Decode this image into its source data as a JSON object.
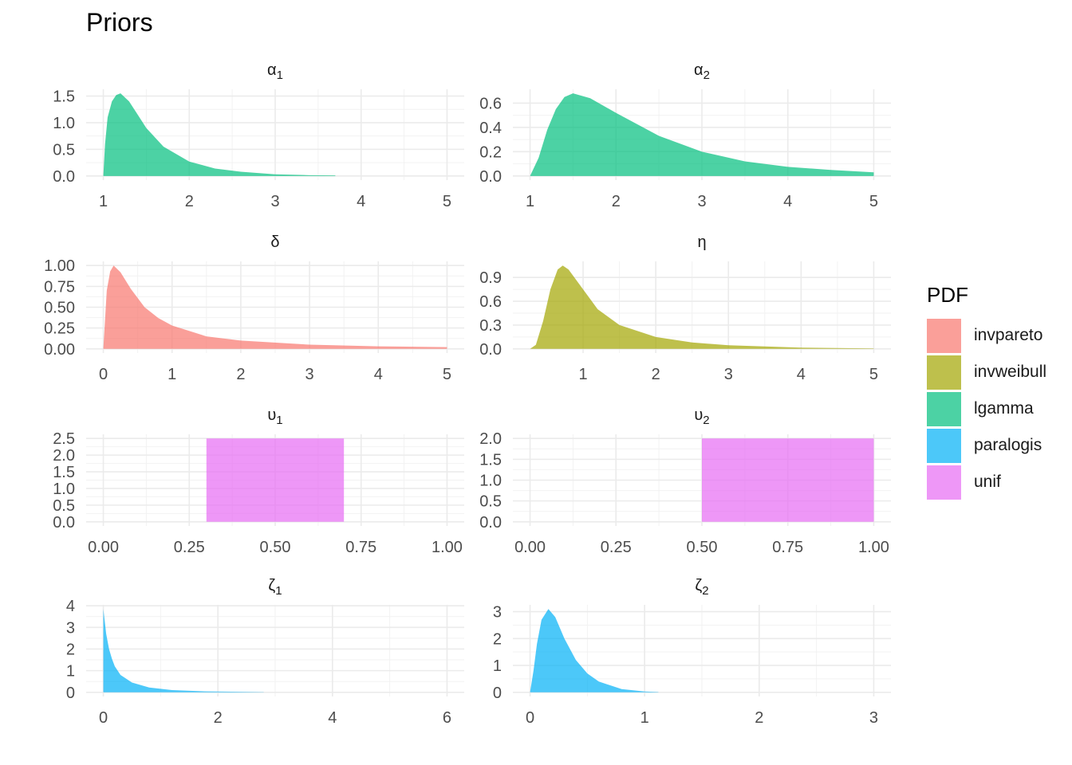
{
  "chart_data": {
    "type": "area",
    "title": "Priors",
    "legend": {
      "title": "PDF",
      "position": "right",
      "entries": [
        {
          "name": "invpareto",
          "color": "#F8766D"
        },
        {
          "name": "invweibull",
          "color": "#A3A500"
        },
        {
          "name": "lgamma",
          "color": "#00BF7D"
        },
        {
          "name": "paralogis",
          "color": "#00B0F6"
        },
        {
          "name": "unif",
          "color": "#E76BF3"
        }
      ]
    },
    "panels": [
      {
        "symbol": "α",
        "sub": "1",
        "pdf": "lgamma",
        "xlim": [
          1,
          5
        ],
        "ylim": [
          0,
          1.55
        ],
        "xticks": [
          1,
          2,
          3,
          4,
          5
        ],
        "xtick_labels": [
          "1",
          "2",
          "3",
          "4",
          "5"
        ],
        "yticks": [
          0,
          0.5,
          1,
          1.5
        ],
        "ytick_labels": [
          "0.0",
          "0.5",
          "1.0",
          "1.5"
        ],
        "x": [
          1,
          1.02,
          1.05,
          1.1,
          1.15,
          1.2,
          1.3,
          1.4,
          1.5,
          1.7,
          2,
          2.3,
          2.6,
          3,
          3.4,
          3.7
        ],
        "y": [
          0,
          0.6,
          1.1,
          1.4,
          1.52,
          1.55,
          1.4,
          1.15,
          0.9,
          0.55,
          0.27,
          0.14,
          0.08,
          0.03,
          0.015,
          0.01
        ]
      },
      {
        "symbol": "α",
        "sub": "2",
        "pdf": "lgamma",
        "xlim": [
          1,
          5
        ],
        "ylim": [
          0,
          0.68
        ],
        "xticks": [
          1,
          2,
          3,
          4,
          5
        ],
        "xtick_labels": [
          "1",
          "2",
          "3",
          "4",
          "5"
        ],
        "yticks": [
          0,
          0.2,
          0.4,
          0.6
        ],
        "ytick_labels": [
          "0.0",
          "0.2",
          "0.4",
          "0.6"
        ],
        "x": [
          1,
          1.1,
          1.2,
          1.3,
          1.4,
          1.5,
          1.7,
          2,
          2.5,
          3,
          3.5,
          4,
          4.5,
          5
        ],
        "y": [
          0,
          0.15,
          0.38,
          0.55,
          0.65,
          0.68,
          0.64,
          0.52,
          0.33,
          0.2,
          0.12,
          0.075,
          0.05,
          0.03
        ]
      },
      {
        "symbol": "δ",
        "sub": "",
        "pdf": "invpareto",
        "xlim": [
          0,
          5
        ],
        "ylim": [
          0,
          1.0
        ],
        "xticks": [
          0,
          1,
          2,
          3,
          4,
          5
        ],
        "xtick_labels": [
          "0",
          "1",
          "2",
          "3",
          "4",
          "5"
        ],
        "yticks": [
          0,
          0.25,
          0.5,
          0.75,
          1
        ],
        "ytick_labels": [
          "0.00",
          "0.25",
          "0.50",
          "0.75",
          "1.00"
        ],
        "x": [
          0,
          0.05,
          0.1,
          0.15,
          0.25,
          0.4,
          0.6,
          0.8,
          1,
          1.5,
          2,
          3,
          4,
          5
        ],
        "y": [
          0,
          0.7,
          0.93,
          1.0,
          0.92,
          0.72,
          0.5,
          0.37,
          0.28,
          0.15,
          0.1,
          0.05,
          0.03,
          0.02
        ]
      },
      {
        "symbol": "η",
        "sub": "",
        "pdf": "invweibull",
        "xlim": [
          0.27,
          5
        ],
        "ylim": [
          0,
          1.05
        ],
        "xticks": [
          1,
          2,
          3,
          4,
          5
        ],
        "xtick_labels": [
          "1",
          "2",
          "3",
          "4",
          "5"
        ],
        "yticks": [
          0,
          0.3,
          0.6,
          0.9
        ],
        "ytick_labels": [
          "0.0",
          "0.3",
          "0.6",
          "0.9"
        ],
        "x": [
          0.27,
          0.35,
          0.45,
          0.55,
          0.65,
          0.72,
          0.8,
          1,
          1.2,
          1.5,
          2,
          2.5,
          3,
          4,
          5
        ],
        "y": [
          0,
          0.05,
          0.35,
          0.75,
          1.0,
          1.05,
          1.0,
          0.75,
          0.5,
          0.3,
          0.15,
          0.08,
          0.045,
          0.015,
          0.005
        ]
      },
      {
        "symbol": "υ",
        "sub": "1",
        "pdf": "unif",
        "xlim": [
          0,
          1
        ],
        "ylim": [
          0,
          2.5
        ],
        "xticks": [
          0,
          0.25,
          0.5,
          0.75,
          1
        ],
        "xtick_labels": [
          "0.00",
          "0.25",
          "0.50",
          "0.75",
          "1.00"
        ],
        "yticks": [
          0,
          0.5,
          1,
          1.5,
          2,
          2.5
        ],
        "ytick_labels": [
          "0.0",
          "0.5",
          "1.0",
          "1.5",
          "2.0",
          "2.5"
        ],
        "x": [
          0.3,
          0.3,
          0.7,
          0.7
        ],
        "y": [
          0,
          2.5,
          2.5,
          0
        ]
      },
      {
        "symbol": "υ",
        "sub": "2",
        "pdf": "unif",
        "xlim": [
          0,
          1
        ],
        "ylim": [
          0,
          2.0
        ],
        "xticks": [
          0,
          0.25,
          0.5,
          0.75,
          1
        ],
        "xtick_labels": [
          "0.00",
          "0.25",
          "0.50",
          "0.75",
          "1.00"
        ],
        "yticks": [
          0,
          0.5,
          1,
          1.5,
          2
        ],
        "ytick_labels": [
          "0.0",
          "0.5",
          "1.0",
          "1.5",
          "2.0"
        ],
        "x": [
          0.5,
          0.5,
          1,
          1
        ],
        "y": [
          0,
          2,
          2,
          0
        ]
      },
      {
        "symbol": "ζ",
        "sub": "1",
        "pdf": "paralogis",
        "xlim": [
          0,
          6
        ],
        "ylim": [
          0,
          3.85
        ],
        "xticks": [
          0,
          2,
          4,
          6
        ],
        "xtick_labels": [
          "0",
          "2",
          "4",
          "6"
        ],
        "yticks": [
          0,
          1,
          2,
          3,
          4
        ],
        "ytick_labels": [
          "0",
          "1",
          "2",
          "3",
          "4"
        ],
        "x": [
          0,
          0,
          0.02,
          0.05,
          0.1,
          0.15,
          0.2,
          0.3,
          0.5,
          0.8,
          1.2,
          1.8,
          2.8
        ],
        "y": [
          0,
          3.85,
          3.4,
          2.7,
          2.0,
          1.55,
          1.2,
          0.8,
          0.45,
          0.22,
          0.1,
          0.04,
          0.01
        ]
      },
      {
        "symbol": "ζ",
        "sub": "2",
        "pdf": "paralogis",
        "xlim": [
          0,
          3
        ],
        "ylim": [
          0,
          3.1
        ],
        "xticks": [
          0,
          1,
          2,
          3
        ],
        "xtick_labels": [
          "0",
          "1",
          "2",
          "3"
        ],
        "yticks": [
          0,
          1,
          2,
          3
        ],
        "ytick_labels": [
          "0",
          "1",
          "2",
          "3"
        ],
        "x": [
          0,
          0.03,
          0.06,
          0.1,
          0.16,
          0.22,
          0.3,
          0.4,
          0.5,
          0.6,
          0.8,
          1,
          1.12
        ],
        "y": [
          0,
          0.8,
          1.8,
          2.7,
          3.1,
          2.8,
          2.0,
          1.2,
          0.7,
          0.4,
          0.12,
          0.03,
          0.01
        ]
      }
    ]
  }
}
